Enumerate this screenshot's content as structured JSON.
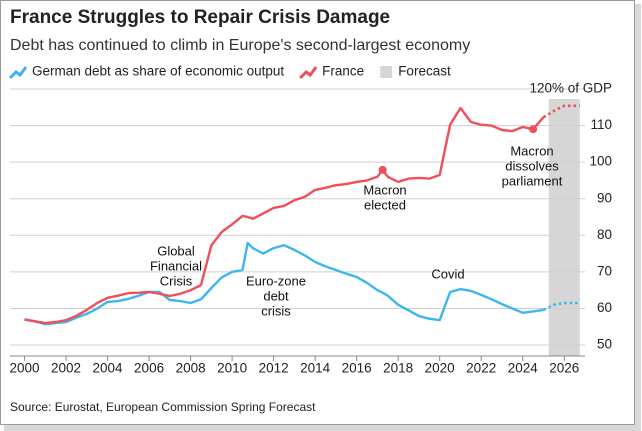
{
  "chart_data": {
    "type": "line",
    "title": "France Struggles to Repair Crisis Damage",
    "subtitle": "Debt has continued to climb in Europe's second-largest economy",
    "source": "Source: Eurostat, European Commission Spring Forecast",
    "x": [
      2000,
      2000.5,
      2001,
      2001.5,
      2002,
      2002.5,
      2003,
      2003.5,
      2004,
      2004.5,
      2005,
      2005.5,
      2006,
      2006.5,
      2007,
      2007.5,
      2008,
      2008.5,
      2009,
      2009.5,
      2010,
      2010.5,
      2010.75,
      2011,
      2011.5,
      2012,
      2012.5,
      2013,
      2013.5,
      2014,
      2014.5,
      2015,
      2015.5,
      2016,
      2016.5,
      2017,
      2017.25,
      2017.5,
      2018,
      2018.5,
      2019,
      2019.5,
      2020,
      2020.5,
      2021,
      2021.5,
      2022,
      2022.5,
      2023,
      2023.5,
      2024,
      2024.5,
      2025,
      2025.5,
      2026,
      2026.5,
      2026.75
    ],
    "series": [
      {
        "name": "German debt as share of economic output",
        "color": "#3db5f0",
        "values": [
          57,
          56.5,
          55.7,
          56,
          56.3,
          57.5,
          58.5,
          60,
          61.8,
          62,
          62.6,
          63.5,
          64.5,
          64.5,
          62.3,
          62,
          61.5,
          62.5,
          65.6,
          68.5,
          70,
          70.5,
          77.9,
          76.5,
          75,
          76.5,
          77.3,
          76,
          74.5,
          72.7,
          71.5,
          70.5,
          69.5,
          68.6,
          67,
          65,
          64.3,
          63.5,
          61,
          59.5,
          57.9,
          57.2,
          56.8,
          64.5,
          65.3,
          64.8,
          63.7,
          62.5,
          61.2,
          60,
          58.8,
          59.2,
          59.6,
          61,
          61.5,
          61.5,
          61.5
        ]
      },
      {
        "name": "France",
        "color": "#f04e58",
        "values": [
          57,
          56.5,
          56,
          56.3,
          56.8,
          58,
          59.6,
          61.5,
          62.9,
          63.5,
          64.2,
          64.3,
          64.5,
          64,
          63.4,
          64,
          65,
          66.4,
          77.3,
          80.9,
          83,
          85.3,
          85,
          84.5,
          86,
          87.5,
          88,
          89.6,
          90.5,
          92.4,
          93,
          93.7,
          94,
          94.6,
          95,
          96,
          97.9,
          96,
          94.6,
          95.5,
          95.7,
          95.5,
          96.5,
          110.2,
          114.8,
          111,
          110.2,
          110,
          108.8,
          108.5,
          109.6,
          109,
          112.3,
          114,
          115.4,
          115.4,
          115.4
        ]
      }
    ],
    "forecast": {
      "name": "Forecast",
      "color": "#d6d6d6",
      "range": [
        2025.25,
        2026.75
      ]
    },
    "xlim": [
      1999.3,
      2027
    ],
    "xticks": [
      2000,
      2002,
      2004,
      2006,
      2008,
      2010,
      2012,
      2014,
      2016,
      2018,
      2020,
      2022,
      2024,
      2026
    ],
    "ylim": [
      47,
      120
    ],
    "yticks": [
      50,
      60,
      70,
      80,
      90,
      100,
      110,
      {
        "value": 120,
        "label": "120% of GDP"
      }
    ],
    "grid": true,
    "annotations": [
      {
        "lines": [
          "Global",
          "Financial",
          "Crisis"
        ]
      },
      {
        "lines": [
          "Euro-zone",
          "debt",
          "crisis"
        ]
      },
      {
        "lines": [
          "Macron",
          "elected"
        ],
        "marker_x": 2017.25
      },
      {
        "lines": [
          "Covid"
        ]
      },
      {
        "lines": [
          "Macron",
          "dissolves",
          "parliament"
        ],
        "marker_x": 2024.5
      }
    ]
  }
}
